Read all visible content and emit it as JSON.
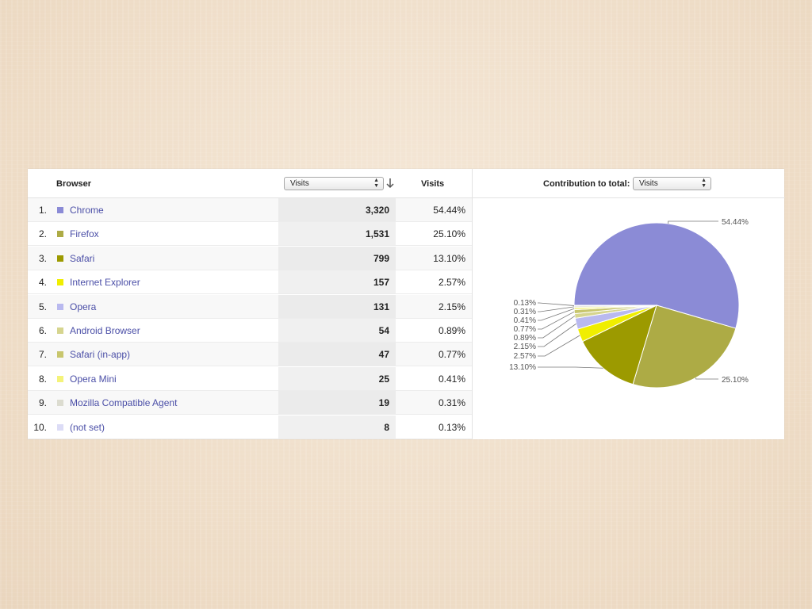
{
  "table": {
    "header": {
      "browser": "Browser",
      "metric_select": "Visits",
      "visits": "Visits"
    },
    "rows": [
      {
        "rank": "1.",
        "name": "Chrome",
        "visits": "3,320",
        "pct": "54.44%",
        "color": "#8b8bd6"
      },
      {
        "rank": "2.",
        "name": "Firefox",
        "visits": "1,531",
        "pct": "25.10%",
        "color": "#adab45"
      },
      {
        "rank": "3.",
        "name": "Safari",
        "visits": "799",
        "pct": "13.10%",
        "color": "#9c9a00"
      },
      {
        "rank": "4.",
        "name": "Internet Explorer",
        "visits": "157",
        "pct": "2.57%",
        "color": "#f0ee00"
      },
      {
        "rank": "5.",
        "name": "Opera",
        "visits": "131",
        "pct": "2.15%",
        "color": "#b9b9ef"
      },
      {
        "rank": "6.",
        "name": "Android Browser",
        "visits": "54",
        "pct": "0.89%",
        "color": "#d6d58f"
      },
      {
        "rank": "7.",
        "name": "Safari (in-app)",
        "visits": "47",
        "pct": "0.77%",
        "color": "#c8c66d"
      },
      {
        "rank": "8.",
        "name": "Opera Mini",
        "visits": "25",
        "pct": "0.41%",
        "color": "#f4f37a"
      },
      {
        "rank": "9.",
        "name": "Mozilla Compatible Agent",
        "visits": "19",
        "pct": "0.31%",
        "color": "#dcdcd0"
      },
      {
        "rank": "10.",
        "name": "(not set)",
        "visits": "8",
        "pct": "0.13%",
        "color": "#dcdcf6"
      }
    ]
  },
  "contribution": {
    "label": "Contribution to total:",
    "select": "Visits"
  },
  "icons": {
    "sort": "arrow-down-icon",
    "select_arrows": "up-down-arrows-icon"
  },
  "chart_data": {
    "type": "pie",
    "categories": [
      "Chrome",
      "Firefox",
      "Safari",
      "Internet Explorer",
      "Opera",
      "Android Browser",
      "Safari (in-app)",
      "Opera Mini",
      "Mozilla Compatible Agent",
      "(not set)"
    ],
    "values": [
      54.44,
      25.1,
      13.1,
      2.57,
      2.15,
      0.89,
      0.77,
      0.41,
      0.31,
      0.13
    ],
    "labels": [
      "54.44%",
      "25.10%",
      "13.10%",
      "2.57%",
      "2.15%",
      "0.89%",
      "0.77%",
      "0.41%",
      "0.31%",
      "0.13%"
    ],
    "colors": [
      "#8b8bd6",
      "#adab45",
      "#9c9a00",
      "#f0ee00",
      "#b9b9ef",
      "#d6d58f",
      "#c8c66d",
      "#f4f37a",
      "#dcdcd0",
      "#dcdcf6"
    ]
  }
}
